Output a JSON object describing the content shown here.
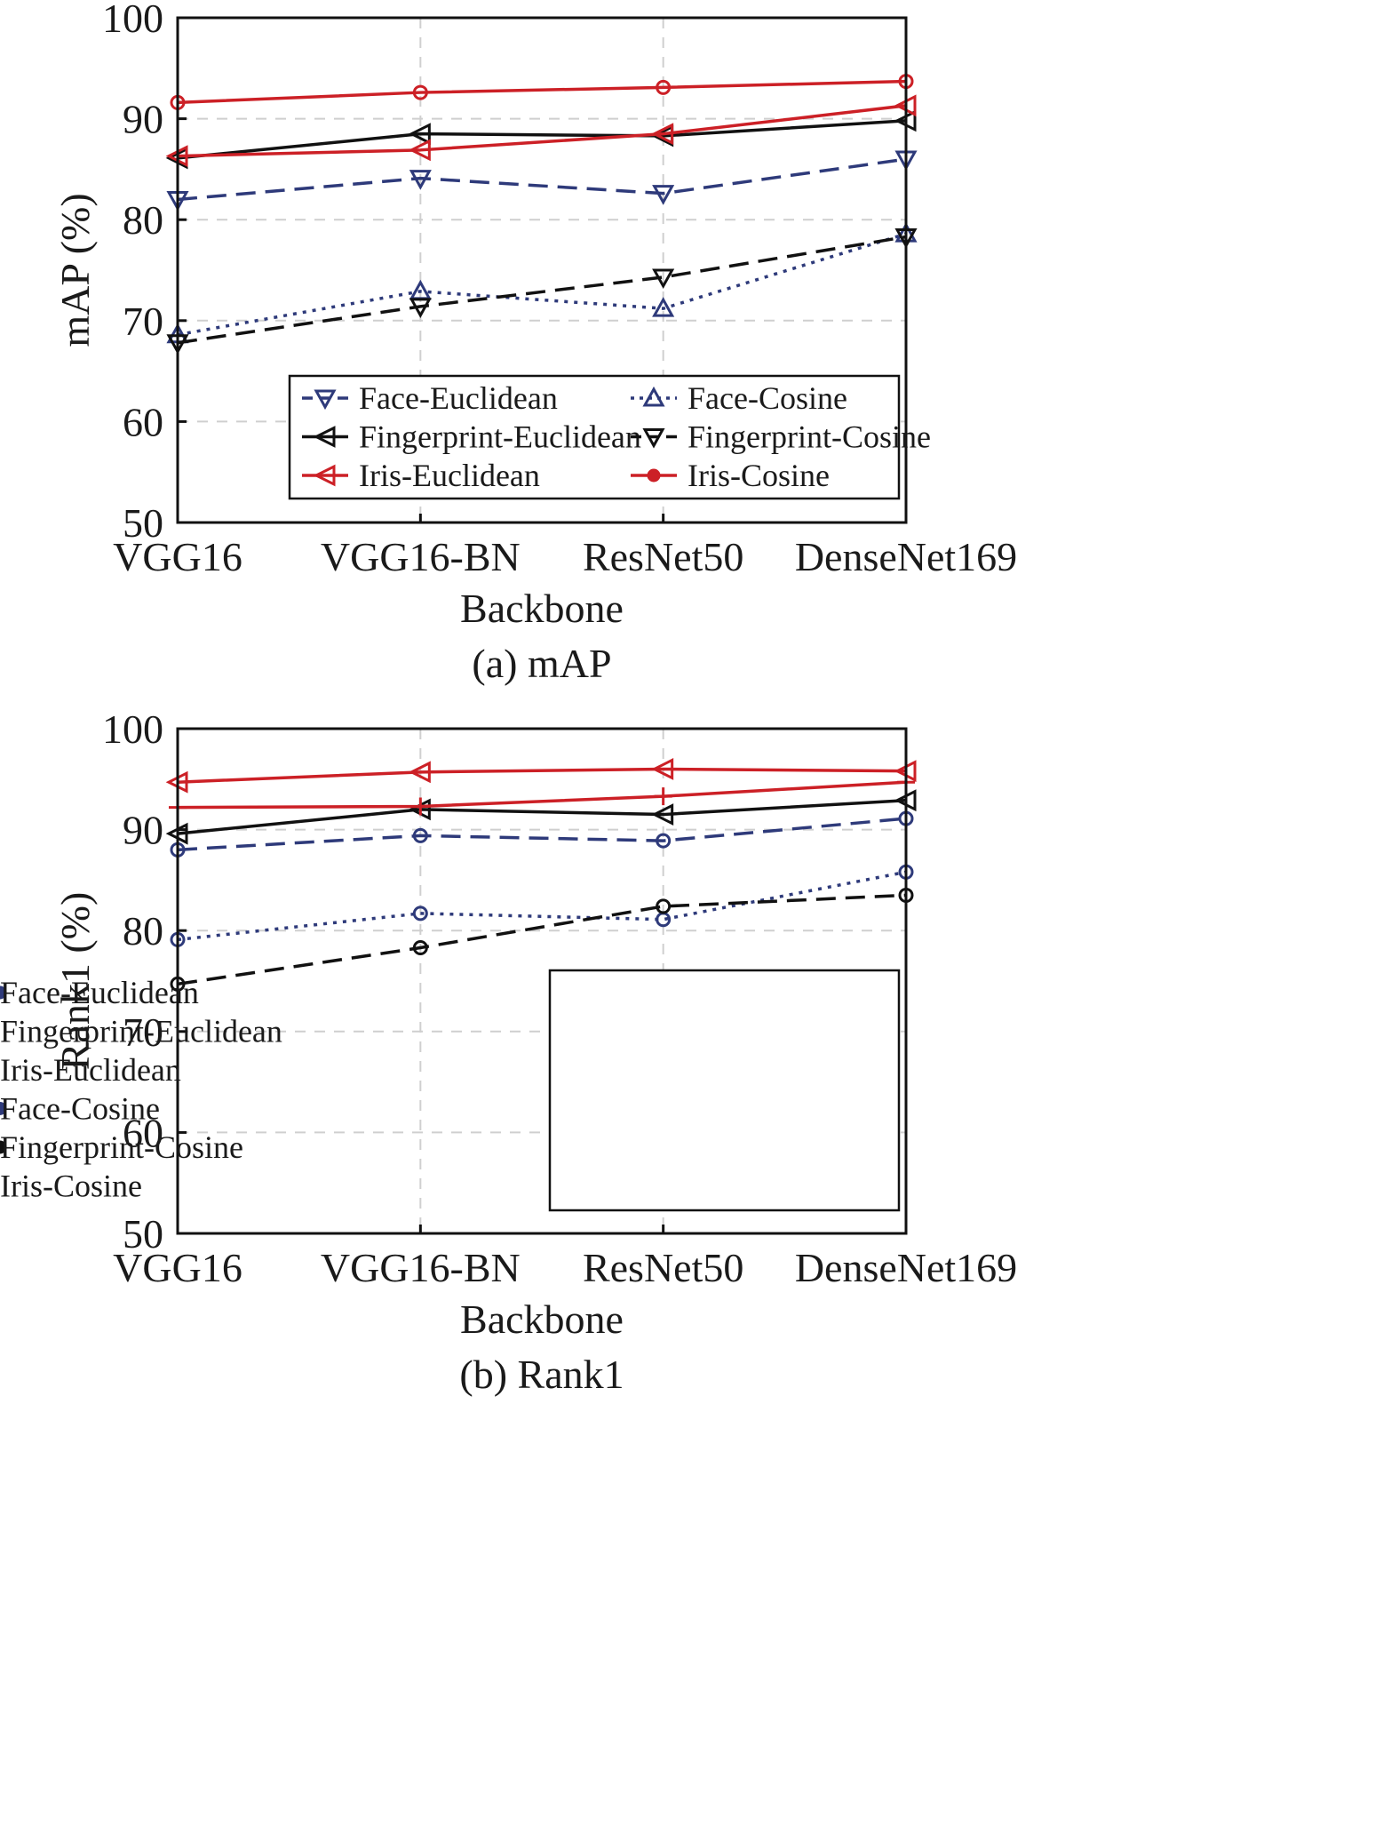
{
  "colors": {
    "navy": "#2e3a7a",
    "black": "#111111",
    "red": "#cc2026",
    "grid": "#cfcfcf"
  },
  "chart_data": [
    {
      "type": "line",
      "caption": "(a) mAP",
      "xlabel": "Backbone",
      "ylabel": "mAP (%)",
      "ylim": [
        50,
        100
      ],
      "yticks": [
        "50",
        "60",
        "70",
        "80",
        "90",
        "100"
      ],
      "categories": [
        "VGG16",
        "VGG16-BN",
        "ResNet50",
        "DenseNet169"
      ],
      "grid": true,
      "legend_position": "lower-right, two columns",
      "legend": [
        "Face-Euclidean",
        "Face-Cosine",
        "Fingerprint-Euclidean",
        "Fingerprint-Cosine",
        "Iris-Euclidean",
        "Iris-Cosine"
      ],
      "series": [
        {
          "name": "Face-Euclidean",
          "color": "navy",
          "dash": "dashed",
          "marker": "triangle-down",
          "values": [
            82.0,
            84.1,
            82.6,
            86.0
          ]
        },
        {
          "name": "Fingerprint-Euclidean",
          "color": "black",
          "dash": "solid",
          "marker": "triangle-left",
          "values": [
            86.1,
            88.5,
            88.3,
            89.8
          ]
        },
        {
          "name": "Iris-Euclidean",
          "color": "red",
          "dash": "solid",
          "marker": "triangle-left",
          "values": [
            86.3,
            86.9,
            88.5,
            91.3
          ]
        },
        {
          "name": "Face-Cosine",
          "color": "navy",
          "dash": "dotted",
          "marker": "triangle-up",
          "values": [
            68.6,
            72.9,
            71.2,
            78.6
          ]
        },
        {
          "name": "Fingerprint-Cosine",
          "color": "black",
          "dash": "dashed",
          "marker": "triangle-down",
          "values": [
            67.8,
            71.4,
            74.3,
            78.3
          ]
        },
        {
          "name": "Iris-Cosine",
          "color": "red",
          "dash": "solid",
          "marker": "circle",
          "values": [
            91.6,
            92.6,
            93.1,
            93.7
          ]
        }
      ]
    },
    {
      "type": "line",
      "caption": "(b) Rank1",
      "xlabel": "Backbone",
      "ylabel": "Rank1 (%)",
      "ylim": [
        50,
        100
      ],
      "yticks": [
        "50",
        "60",
        "70",
        "80",
        "90",
        "100"
      ],
      "categories": [
        "VGG16",
        "VGG16-BN",
        "ResNet50",
        "DenseNet169"
      ],
      "grid": true,
      "legend_position": "lower-right, one column",
      "legend": [
        "Face-Euclidean",
        "Fingerprint-Euclidean",
        "Iris-Euclidean",
        "Face-Cosine",
        "Fingerprint-Cosine",
        "Iris-Cosine"
      ],
      "series": [
        {
          "name": "Face-Euclidean",
          "color": "navy",
          "dash": "dashed",
          "marker": "circle",
          "values": [
            88.0,
            89.4,
            88.9,
            91.1
          ]
        },
        {
          "name": "Fingerprint-Euclidean",
          "color": "black",
          "dash": "solid",
          "marker": "triangle-left",
          "values": [
            89.6,
            92.0,
            91.5,
            92.9
          ]
        },
        {
          "name": "Iris-Euclidean",
          "color": "red",
          "dash": "solid",
          "marker": "triangle-left",
          "values": [
            94.7,
            95.7,
            96.0,
            95.8
          ]
        },
        {
          "name": "Face-Cosine",
          "color": "navy",
          "dash": "dotted",
          "marker": "circle",
          "values": [
            79.1,
            81.7,
            81.1,
            85.8
          ]
        },
        {
          "name": "Fingerprint-Cosine",
          "color": "black",
          "dash": "dashed",
          "marker": "circle",
          "values": [
            74.7,
            78.3,
            82.4,
            83.5
          ]
        },
        {
          "name": "Iris-Cosine",
          "color": "red",
          "dash": "solid",
          "marker": "plus",
          "values": [
            92.2,
            92.3,
            93.3,
            94.7
          ]
        }
      ]
    }
  ]
}
